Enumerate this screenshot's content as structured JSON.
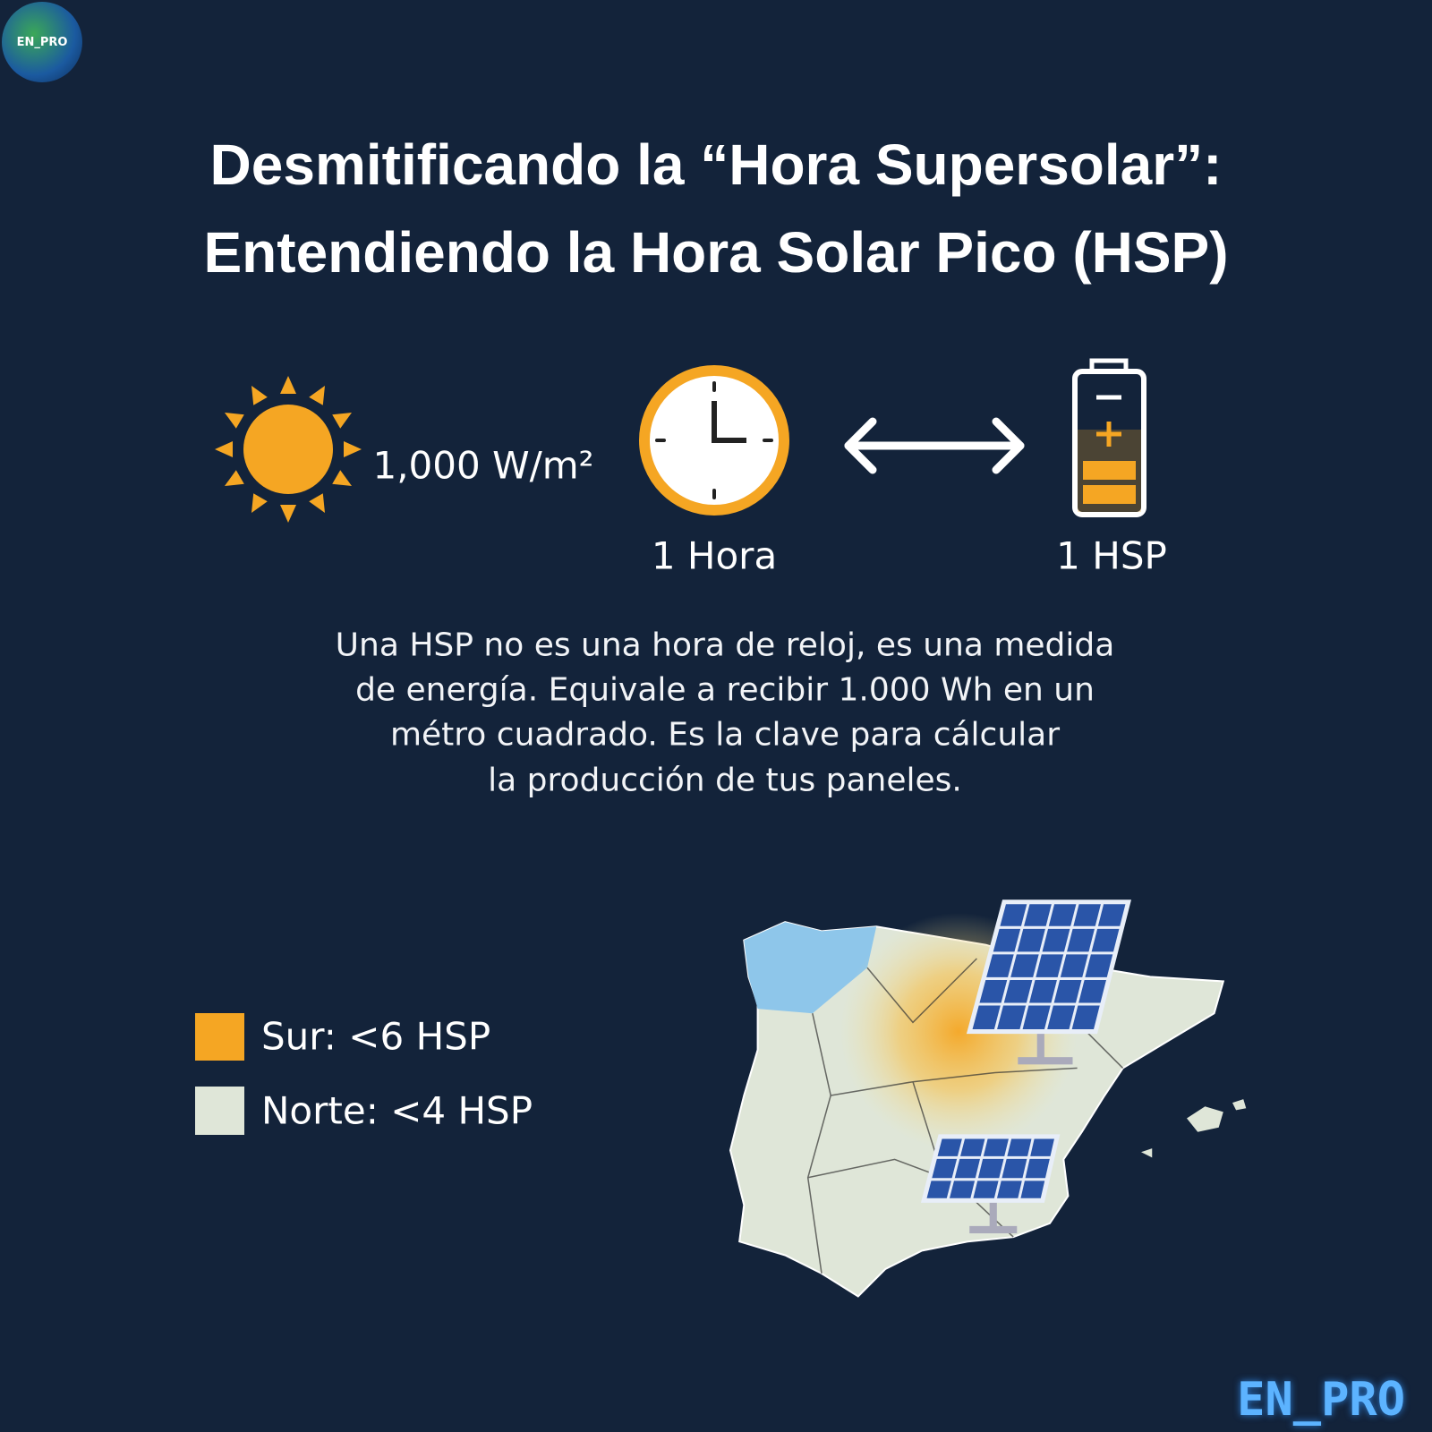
{
  "logo": {
    "label": "EN_PRO"
  },
  "header": {
    "title_lines": [
      "Desmitificando la “Hora Supersolar”:",
      "Entendiendo la Hora Solar Pico (HSP)"
    ]
  },
  "equation": {
    "irradiance": "1,000 W/m²",
    "clock_label": "1 Hora",
    "battery_label": "1 HSP"
  },
  "description": {
    "lines": [
      "Una HSP no es una hora de reloj, es una medida",
      "de energía. Equivale a recibir 1.000 Wh en un",
      "métro cuadrado. Es la clave para cálcular",
      "la producción de tus paneles."
    ]
  },
  "legend": {
    "items": [
      {
        "label": "Sur: <6 HSP",
        "color": "#f5a623"
      },
      {
        "label": "Norte: <4 HSP",
        "color": "#dfe6d8"
      }
    ]
  },
  "footer": {
    "brand": "EN_PRO"
  }
}
